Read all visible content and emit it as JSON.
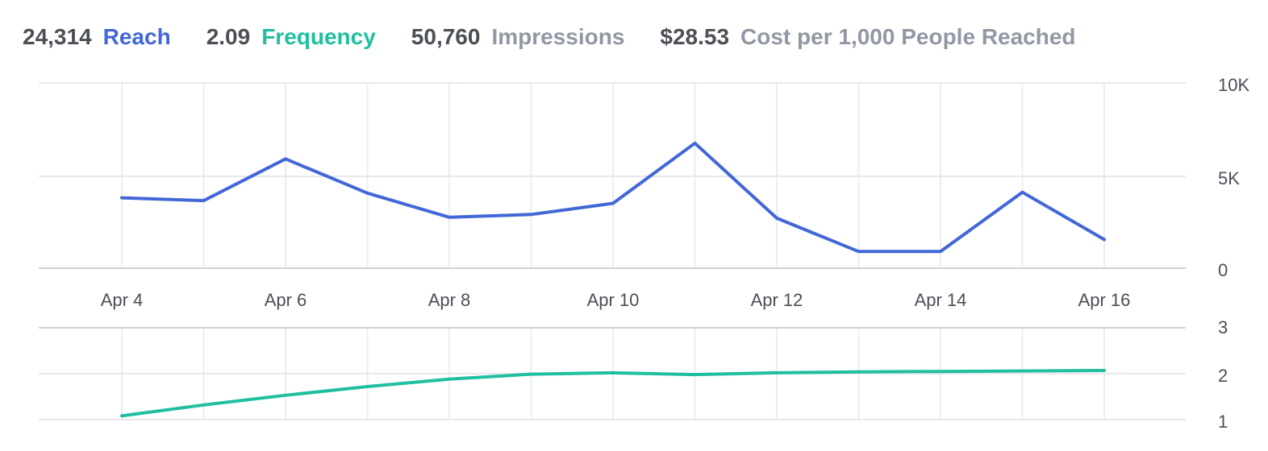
{
  "metrics": [
    {
      "value": "24,314",
      "label": "Reach",
      "color": "#4267d6"
    },
    {
      "value": "2.09",
      "label": "Frequency",
      "color": "#1fbf9f"
    },
    {
      "value": "50,760",
      "label": "Impressions",
      "color": "#9197a3"
    },
    {
      "value": "$28.53",
      "label": "Cost per 1,000 People Reached",
      "color": "#9197a3"
    }
  ],
  "chart_data": [
    {
      "type": "line",
      "x": [
        "Apr 4",
        "Apr 5",
        "Apr 6",
        "Apr 7",
        "Apr 8",
        "Apr 9",
        "Apr 10",
        "Apr 11",
        "Apr 12",
        "Apr 13",
        "Apr 14",
        "Apr 15",
        "Apr 16"
      ],
      "xtick_labels": [
        "Apr 4",
        "Apr 6",
        "Apr 8",
        "Apr 10",
        "Apr 12",
        "Apr 14",
        "Apr 16"
      ],
      "series": [
        {
          "name": "Reach",
          "color": "#4267d6",
          "values": [
            3800,
            3650,
            5900,
            4050,
            2750,
            2900,
            3500,
            6750,
            2700,
            900,
            900,
            4100,
            1550
          ]
        }
      ],
      "ylim": [
        0,
        10000
      ],
      "ytick_labels": [
        "0",
        "5K",
        "10K"
      ],
      "grid": true
    },
    {
      "type": "line",
      "x": [
        "Apr 4",
        "Apr 5",
        "Apr 6",
        "Apr 7",
        "Apr 8",
        "Apr 9",
        "Apr 10",
        "Apr 11",
        "Apr 12",
        "Apr 13",
        "Apr 14",
        "Apr 15",
        "Apr 16"
      ],
      "series": [
        {
          "name": "Frequency",
          "color": "#1fbf9f",
          "values": [
            1.08,
            1.32,
            1.53,
            1.72,
            1.88,
            1.99,
            2.02,
            1.98,
            2.02,
            2.04,
            2.05,
            2.06,
            2.07
          ]
        }
      ],
      "ylim": [
        1,
        3
      ],
      "ytick_labels": [
        "1",
        "2",
        "3"
      ],
      "grid": true
    }
  ]
}
